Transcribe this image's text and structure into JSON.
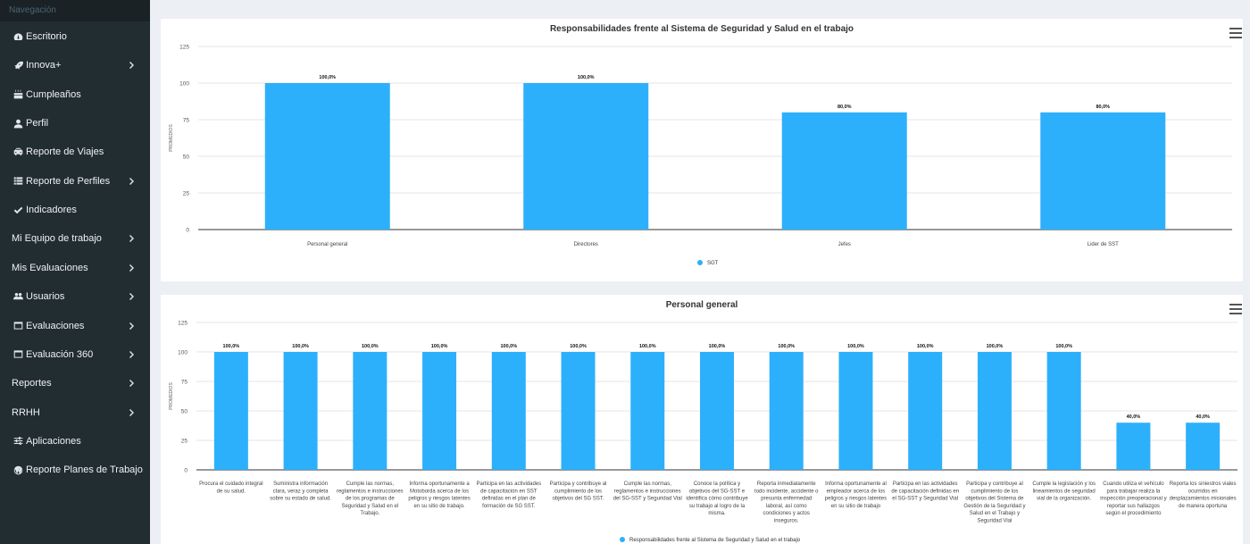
{
  "sidebar": {
    "header": "Navegación",
    "items": [
      {
        "label": "Escritorio",
        "icon": "dashboard-icon",
        "chevron": false
      },
      {
        "label": "Innova+",
        "icon": "rocket-icon",
        "chevron": true
      },
      {
        "label": "Cumpleaños",
        "icon": "birthday-cake-icon",
        "chevron": false
      },
      {
        "label": "Perfil",
        "icon": "user-icon",
        "chevron": false
      },
      {
        "label": "Reporte de Viajes",
        "icon": "car-icon",
        "chevron": false
      },
      {
        "label": "Reporte de Perfiles",
        "icon": "list-icon",
        "chevron": true
      },
      {
        "label": "Indicadores",
        "icon": "check-icon",
        "chevron": false
      },
      {
        "label": "Mi Equipo de trabajo",
        "icon": "",
        "chevron": true
      },
      {
        "label": "Mis Evaluaciones",
        "icon": "",
        "chevron": true
      },
      {
        "label": "Usuarios",
        "icon": "users-icon",
        "chevron": true
      },
      {
        "label": "Evaluaciones",
        "icon": "window-icon",
        "chevron": true
      },
      {
        "label": "Evaluación 360",
        "icon": "window-icon",
        "chevron": true
      },
      {
        "label": "Reportes",
        "icon": "",
        "chevron": true
      },
      {
        "label": "RRHH",
        "icon": "",
        "chevron": true
      },
      {
        "label": "Aplicaciones",
        "icon": "sliders-icon",
        "chevron": false
      },
      {
        "label": "Reporte Planes de Trabajo",
        "icon": "wordpress-icon",
        "chevron": false
      }
    ]
  },
  "chart_data": [
    {
      "type": "bar",
      "title": "Responsabilidades frente al Sistema de Seguridad y Salud en el trabajo",
      "ylabel": "PROMEDIOS",
      "xlabel": "",
      "ylim": [
        0,
        125
      ],
      "yticks": [
        "0",
        "25",
        "50",
        "75",
        "100",
        "125"
      ],
      "categories": [
        "Personal general",
        "Directores",
        "Jefes",
        "Lider de SST"
      ],
      "series": [
        {
          "name": "SGT",
          "values": [
            100,
            100,
            80,
            80
          ]
        }
      ],
      "data_labels": [
        "100,0%",
        "100,0%",
        "80,0%",
        "80,0%"
      ],
      "color": "#2db0fb",
      "grid": true,
      "legend": "bottom-center"
    },
    {
      "type": "bar",
      "title": "Personal general",
      "ylabel": "PROMEDIOS",
      "xlabel": "",
      "ylim": [
        0,
        125
      ],
      "yticks": [
        "0",
        "25",
        "50",
        "75",
        "100",
        "125"
      ],
      "categories": [
        [
          "Procura el cuidado integral",
          "de su salud."
        ],
        [
          "Suministra información",
          "clara, veraz y completa",
          "sobre su estado de salud."
        ],
        [
          "Cumple las normas,",
          "reglamentos e instrucciones",
          "de los programas de",
          "Seguridad y Salud en el",
          "Trabajo."
        ],
        [
          "Informa oportunamente a",
          "Motoborda acerca de los",
          "peligros y riesgos latentes",
          "en su sitio de trabajo."
        ],
        [
          "Participa en las actividades",
          "de capacitación en SST",
          "definidas en el plan de",
          "formación de SG SST."
        ],
        [
          "Participa y contribuye al",
          "cumplimiento de los",
          "objetivos del SG SST."
        ],
        [
          "Cumple las normas,",
          "reglamentos e instrucciones",
          "del SG-SST y Seguridad Vial"
        ],
        [
          "Conoce la política y",
          "objetivos del SG-SST e",
          "identifica cómo contribuye",
          "su trabajo al logro de la",
          "misma."
        ],
        [
          "Reporta inmediatamente",
          "todo incidente, accidente o",
          "presunta enfermedad",
          "laboral, así como",
          "condiciones y actos",
          "inseguros."
        ],
        [
          "Informa oportunamente al",
          "empleador acerca de los",
          "peligros y riesgos latentes",
          "en su sitio de trabajo"
        ],
        [
          "Participa en las actividades",
          "de capacitación definidas en",
          "el SG-SST y Seguridad Vial"
        ],
        [
          "Participa y contribuye al",
          "cumplimiento de los",
          "objetivos del Sistema de",
          "Gestión de la Seguridad y",
          "Salud en el Trabajo y",
          "Seguridad Vial"
        ],
        [
          "Cumple la legislación y los",
          "lineamientos de seguridad",
          "vial de la organización."
        ],
        [
          "Cuando utiliza el vehículo",
          "para trabajar realiza la",
          "inspección preoperacional y",
          "reportar sus hallazgos",
          "según el procedimiento"
        ],
        [
          "Reporta los siniestros viales",
          "ocurridos en",
          "desplazamientos misionales",
          "de manera oportuna"
        ]
      ],
      "series": [
        {
          "name": "Responsabilidades frente al Sistema de Seguridad y Salud en el trabajo",
          "values": [
            100,
            100,
            100,
            100,
            100,
            100,
            100,
            100,
            100,
            100,
            100,
            100,
            100,
            40,
            40
          ]
        }
      ],
      "data_labels": [
        "100,0%",
        "100,0%",
        "100,0%",
        "100,0%",
        "100,0%",
        "100,0%",
        "100,0%",
        "100,0%",
        "100,0%",
        "100,0%",
        "100,0%",
        "100,0%",
        "100,0%",
        "40,0%",
        "40,0%"
      ],
      "color": "#2db0fb",
      "grid": true,
      "legend": "bottom-center"
    }
  ]
}
